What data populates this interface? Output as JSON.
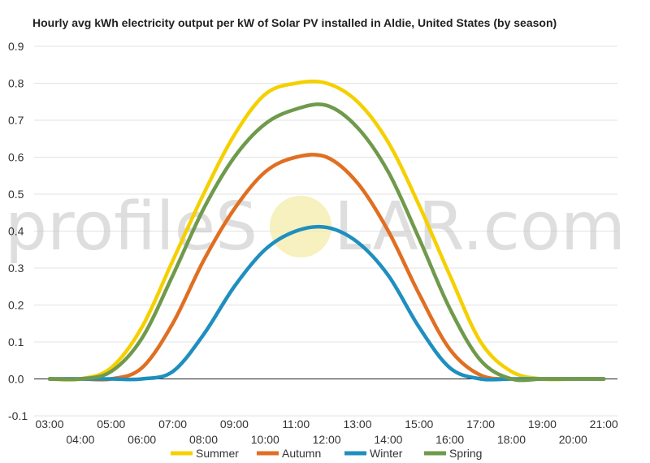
{
  "watermark": {
    "left": "profileS",
    "right": "LAR.com"
  },
  "chart_data": {
    "type": "line",
    "title": "Hourly avg kWh electricity output per kW of Solar PV installed in Aldie, United States (by season)",
    "xlabel": "",
    "ylabel": "",
    "ylim": [
      -0.1,
      0.9
    ],
    "yticks": [
      "-0.1",
      "0.0",
      "0.1",
      "0.2",
      "0.3",
      "0.4",
      "0.5",
      "0.6",
      "0.7",
      "0.8",
      "0.9"
    ],
    "x": [
      "03:00",
      "04:00",
      "05:00",
      "06:00",
      "07:00",
      "08:00",
      "09:00",
      "10:00",
      "11:00",
      "12:00",
      "13:00",
      "14:00",
      "15:00",
      "16:00",
      "17:00",
      "18:00",
      "19:00",
      "20:00",
      "21:00"
    ],
    "grid": true,
    "legend_position": "bottom",
    "series": [
      {
        "name": "Summer",
        "color": "#f5d000",
        "values": [
          0.0,
          0.0,
          0.03,
          0.14,
          0.32,
          0.5,
          0.66,
          0.77,
          0.8,
          0.8,
          0.75,
          0.64,
          0.47,
          0.28,
          0.1,
          0.02,
          0.0,
          0.0,
          0.0
        ]
      },
      {
        "name": "Autumn",
        "color": "#e06f22",
        "values": [
          0.0,
          0.0,
          0.0,
          0.03,
          0.15,
          0.32,
          0.46,
          0.56,
          0.6,
          0.6,
          0.53,
          0.4,
          0.23,
          0.08,
          0.01,
          0.0,
          0.0,
          0.0,
          0.0
        ]
      },
      {
        "name": "Winter",
        "color": "#1e8fbf",
        "values": [
          0.0,
          0.0,
          0.0,
          0.0,
          0.02,
          0.12,
          0.25,
          0.35,
          0.4,
          0.41,
          0.37,
          0.28,
          0.14,
          0.03,
          0.0,
          0.0,
          0.0,
          0.0,
          0.0
        ]
      },
      {
        "name": "Spring",
        "color": "#6f9a4c",
        "values": [
          0.0,
          0.0,
          0.02,
          0.11,
          0.28,
          0.46,
          0.6,
          0.69,
          0.73,
          0.74,
          0.68,
          0.56,
          0.38,
          0.19,
          0.05,
          0.0,
          0.0,
          0.0,
          0.0
        ]
      }
    ]
  }
}
